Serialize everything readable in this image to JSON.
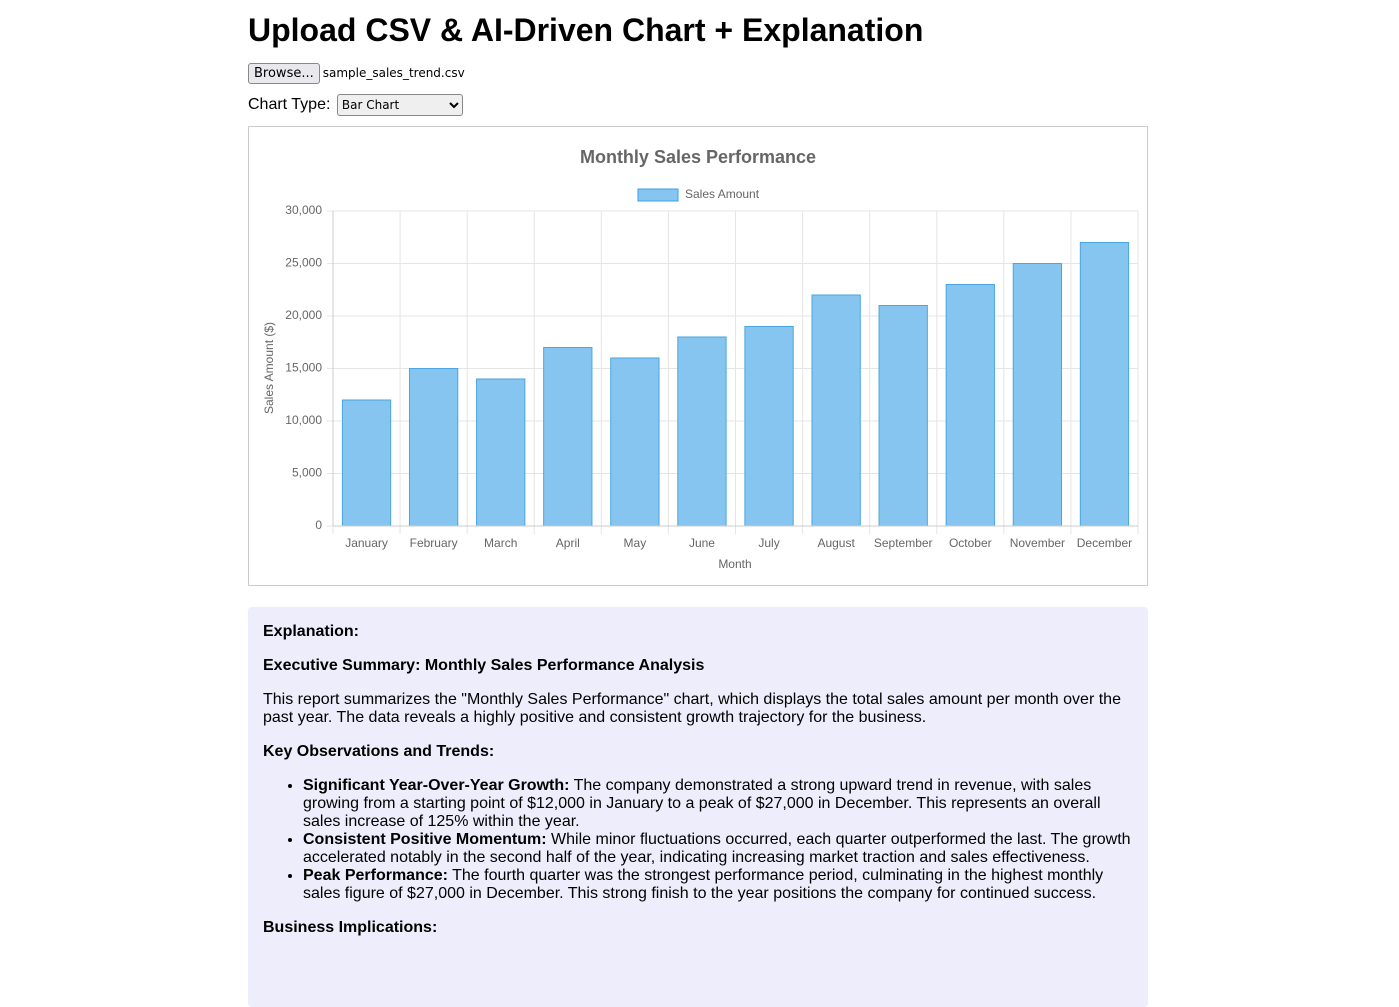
{
  "header": {
    "title": "Upload CSV & AI-Driven Chart + Explanation"
  },
  "controls": {
    "browse_button": "Browse...",
    "file_name": "sample_sales_trend.csv",
    "chart_type_label": "Chart Type:",
    "chart_type_value": "Bar Chart"
  },
  "chart_data": {
    "type": "bar",
    "title": "Monthly Sales Performance",
    "x_label": "Month",
    "y_label": "Sales Amount ($)",
    "categories": [
      "January",
      "February",
      "March",
      "April",
      "May",
      "June",
      "July",
      "August",
      "September",
      "October",
      "November",
      "December"
    ],
    "series": [
      {
        "name": "Sales Amount",
        "color": "#86c5f0",
        "values": [
          12000,
          15000,
          14000,
          17000,
          16000,
          18000,
          19000,
          22000,
          21000,
          23000,
          25000,
          27000
        ]
      }
    ],
    "ylim": [
      0,
      30000
    ],
    "yticks": [
      0,
      {
        "value": 5000,
        "label": "5,000"
      },
      {
        "value": 10000,
        "label": "10,000"
      },
      {
        "value": 15000,
        "label": "15,000"
      },
      {
        "value": 20000,
        "label": "20,000"
      },
      {
        "value": 25000,
        "label": "25,000"
      },
      {
        "value": 30000,
        "label": "30,000"
      }
    ],
    "grid": true,
    "legend": "top"
  },
  "explanation": {
    "label": "Explanation:",
    "heading": "Executive Summary: Monthly Sales Performance Analysis",
    "intro": "This report summarizes the \"Monthly Sales Performance\" chart, which displays the total sales amount per month over the past year. The data reveals a highly positive and consistent growth trajectory for the business.",
    "observations_heading": "Key Observations and Trends:",
    "observations": [
      {
        "lead": "Significant Year-Over-Year Growth:",
        "text": "The company demonstrated a strong upward trend in revenue, with sales growing from a starting point of $12,000 in January to a peak of $27,000 in December. This represents an overall sales increase of 125% within the year."
      },
      {
        "lead": "Consistent Positive Momentum:",
        "text": "While minor fluctuations occurred, each quarter outperformed the last. The growth accelerated notably in the second half of the year, indicating increasing market traction and sales effectiveness."
      },
      {
        "lead": "Peak Performance:",
        "text": "The fourth quarter was the strongest performance period, culminating in the highest monthly sales figure of $27,000 in December. This strong finish to the year positions the company for continued success."
      }
    ],
    "implications_heading": "Business Implications:"
  }
}
